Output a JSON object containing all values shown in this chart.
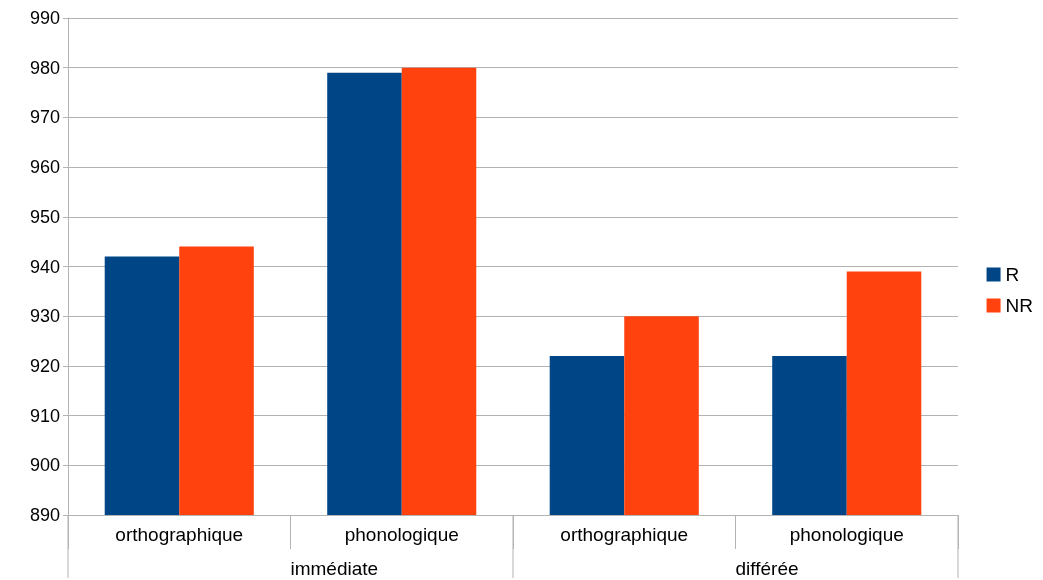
{
  "chart_data": {
    "type": "bar",
    "categories": [
      "orthographique",
      "phonologique",
      "orthographique",
      "phonologique"
    ],
    "series": [
      {
        "name": "R",
        "color": "#004586",
        "values": [
          942,
          979,
          922,
          922
        ]
      },
      {
        "name": "NR",
        "color": "#ff420e",
        "values": [
          944,
          980,
          930,
          939
        ]
      }
    ],
    "annotations": [
      "immédiate",
      "différée"
    ],
    "ylim": [
      890,
      990
    ],
    "yticks": [
      890,
      900,
      910,
      920,
      930,
      940,
      950,
      960,
      970,
      980,
      990
    ],
    "grid": "y",
    "legend": "right"
  }
}
